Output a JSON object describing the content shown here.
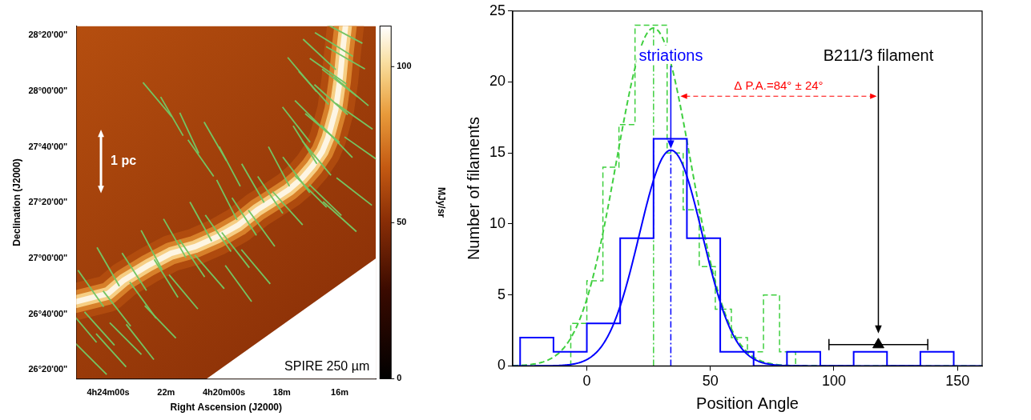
{
  "chart_data": [
    {
      "type": "map",
      "x_label": "Right Ascension (J2000)",
      "y_label": "Declination (J2000)",
      "xlim": [
        25.1,
        14.75
      ],
      "ylim": [
        26.28,
        28.39
      ],
      "xticks": [
        {
          "value": 24,
          "label": "4h24m00s"
        },
        {
          "value": 22,
          "label": "22m"
        },
        {
          "value": 20,
          "label": "4h20m00s"
        },
        {
          "value": 18,
          "label": "18m"
        },
        {
          "value": 16,
          "label": "16m"
        }
      ],
      "yticks": [
        {
          "value": 26.333333,
          "label": "26°20'00\""
        },
        {
          "value": 26.666667,
          "label": "26°40'00\""
        },
        {
          "value": 27,
          "label": "27°00'00\""
        },
        {
          "value": 27.333333,
          "label": "27°20'00\""
        },
        {
          "value": 27.666667,
          "label": "27°40'00\""
        },
        {
          "value": 28,
          "label": "28°00'00\""
        },
        {
          "value": 28.333333,
          "label": "28°20'00\""
        }
      ],
      "colorbar": {
        "label": "MJy/sr",
        "lim": [
          0,
          113
        ],
        "ticks": [
          0,
          50,
          100
        ]
      },
      "map_label": "SPIRE 250 µm",
      "scale_bar": {
        "label": "1 pc",
        "x": 24.25,
        "y": [
          27.39,
          27.77
        ]
      },
      "filament_ridge": [
        [
          25.14,
          26.74
        ],
        [
          24.0,
          26.79
        ],
        [
          23.46,
          26.87
        ],
        [
          22.6,
          26.96
        ],
        [
          21.83,
          27.03
        ],
        [
          21.0,
          27.07
        ],
        [
          20.21,
          27.13
        ],
        [
          19.5,
          27.2
        ],
        [
          18.85,
          27.29
        ],
        [
          18.3,
          27.35
        ],
        [
          17.77,
          27.41
        ],
        [
          17.3,
          27.48
        ],
        [
          16.95,
          27.55
        ],
        [
          16.6,
          27.64
        ],
        [
          16.41,
          27.72
        ],
        [
          16.14,
          27.89
        ],
        [
          16.0,
          28.06
        ],
        [
          15.9,
          28.24
        ],
        [
          15.8,
          28.39
        ]
      ],
      "coverage_edge": [
        [
          20.6,
          26.28
        ],
        [
          14.75,
          27.0
        ]
      ],
      "vectors": {
        "color": "#74c462",
        "values": [
          [
            24.9,
            26.6,
            40
          ],
          [
            24.6,
            26.82,
            35
          ],
          [
            24.3,
            26.58,
            42
          ],
          [
            24.0,
            26.95,
            30
          ],
          [
            23.7,
            26.7,
            38
          ],
          [
            23.4,
            26.52,
            45
          ],
          [
            23.1,
            26.92,
            33
          ],
          [
            22.8,
            26.75,
            36
          ],
          [
            22.5,
            27.05,
            28
          ],
          [
            22.2,
            26.62,
            44
          ],
          [
            22.0,
            26.88,
            32
          ],
          [
            21.7,
            27.12,
            30
          ],
          [
            21.4,
            26.8,
            40
          ],
          [
            21.1,
            27.0,
            34
          ],
          [
            20.8,
            27.22,
            29
          ],
          [
            20.5,
            26.92,
            41
          ],
          [
            20.2,
            27.15,
            35
          ],
          [
            19.9,
            27.35,
            27
          ],
          [
            19.6,
            27.05,
            38
          ],
          [
            19.3,
            27.25,
            33
          ],
          [
            19.0,
            27.45,
            30
          ],
          [
            18.7,
            27.18,
            36
          ],
          [
            18.4,
            27.38,
            34
          ],
          [
            18.1,
            27.55,
            28
          ],
          [
            17.8,
            27.3,
            42
          ],
          [
            17.5,
            27.5,
            37
          ],
          [
            17.2,
            27.68,
            32
          ],
          [
            17.0,
            27.4,
            45
          ],
          [
            16.8,
            27.6,
            40
          ],
          [
            17.5,
            27.8,
            38
          ],
          [
            17.0,
            27.85,
            45
          ],
          [
            16.6,
            27.78,
            50
          ],
          [
            16.3,
            27.95,
            48
          ],
          [
            16.9,
            28.02,
            42
          ],
          [
            16.4,
            28.12,
            55
          ],
          [
            16.0,
            28.05,
            52
          ],
          [
            16.7,
            28.22,
            47
          ],
          [
            16.2,
            28.28,
            58
          ],
          [
            15.8,
            28.2,
            60
          ],
          [
            15.6,
            28.0,
            50
          ],
          [
            15.5,
            27.85,
            55
          ],
          [
            16.1,
            27.7,
            44
          ],
          [
            17.3,
            28.1,
            40
          ],
          [
            15.9,
            28.35,
            62
          ],
          [
            22.3,
            27.95,
            40
          ],
          [
            21.8,
            27.85,
            30
          ],
          [
            21.2,
            27.75,
            25
          ],
          [
            20.8,
            27.6,
            35
          ],
          [
            20.3,
            27.7,
            30
          ],
          [
            19.8,
            27.55,
            28
          ],
          [
            23.9,
            26.45,
            42
          ],
          [
            22.9,
            26.5,
            38
          ],
          [
            24.6,
            26.4,
            45
          ],
          [
            18.9,
            26.95,
            40
          ],
          [
            19.5,
            26.85,
            36
          ],
          [
            16.0,
            27.25,
            48
          ],
          [
            15.5,
            27.4,
            52
          ],
          [
            16.5,
            27.35,
            46
          ],
          [
            15.2,
            27.65,
            55
          ]
        ]
      }
    },
    {
      "type": "histogram",
      "x_label": "Position Angle",
      "y_label": "Number of filaments",
      "xlim": [
        -30,
        160
      ],
      "ylim": [
        0,
        25
      ],
      "xticks": [
        0,
        50,
        100,
        150
      ],
      "yticks": [
        0,
        5,
        10,
        15,
        20,
        25
      ],
      "grid": false,
      "series": [
        {
          "name": "striations",
          "color": "#0000ff",
          "line_style": "solid",
          "bins": [
            -27,
            -13.5,
            0,
            13.5,
            27,
            40.5,
            54,
            67.5,
            81,
            94.5,
            108,
            121.5,
            135,
            148.5
          ],
          "values": [
            2,
            1,
            3,
            9,
            16,
            9,
            1,
            0,
            1,
            0,
            1,
            0,
            1
          ],
          "fit": {
            "amplitude": 15.2,
            "mean": 34,
            "sigma": 12.8
          }
        },
        {
          "color": "#3fcf3f",
          "line_style": "dashed",
          "bins": [
            -6.5,
            0,
            6.5,
            13,
            19.5,
            26,
            32.5,
            39,
            45.5,
            52,
            58.5,
            65,
            71.5,
            78,
            84.5
          ],
          "values": [
            3,
            6,
            14,
            17,
            24,
            24,
            15,
            11,
            7,
            4,
            2,
            1,
            5,
            1
          ],
          "fit": {
            "amplitude": 23.8,
            "mean": 27,
            "sigma": 15
          }
        }
      ],
      "marker_point": {
        "label": "B211/3 filament",
        "x": 118,
        "x_error": 20,
        "y": 1.5,
        "marker": "triangle",
        "color": "#000000"
      },
      "difference": {
        "label": "Δ P.A.=84° ± 24°",
        "color": "#ff0000"
      }
    }
  ]
}
